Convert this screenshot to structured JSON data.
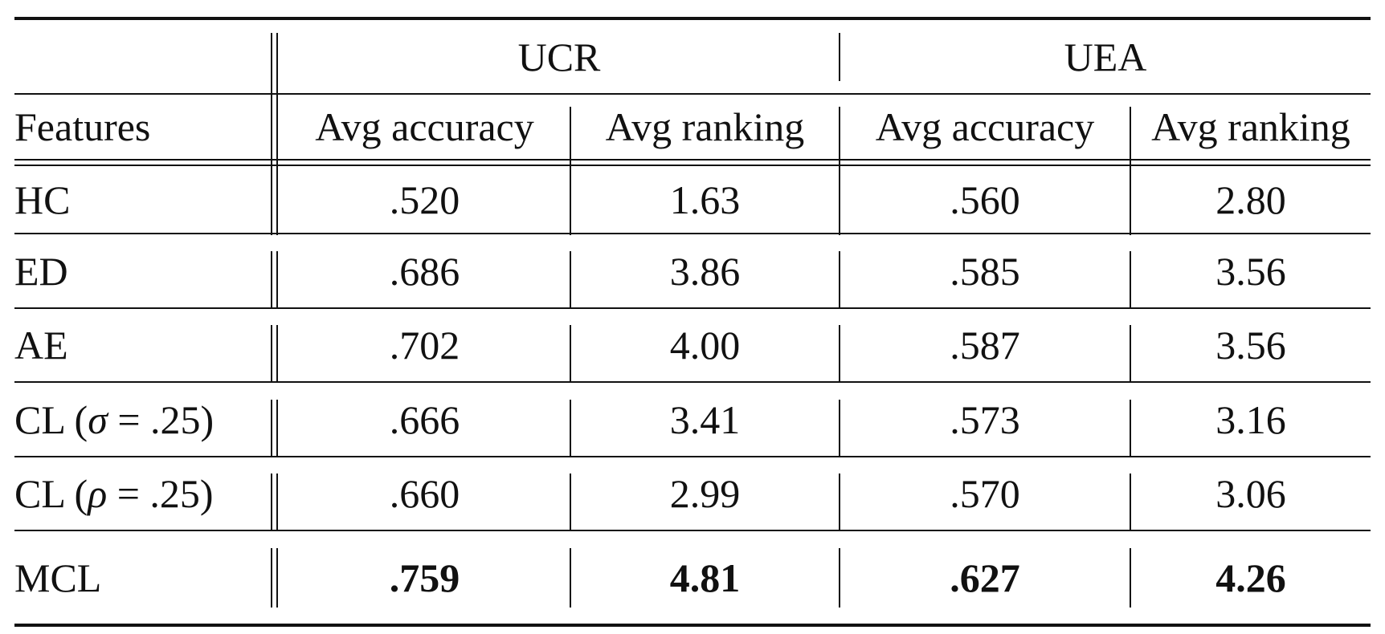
{
  "table": {
    "groups": [
      {
        "label": "UCR"
      },
      {
        "label": "UEA"
      }
    ],
    "header": {
      "features": "Features",
      "columns": [
        "Avg accuracy",
        "Avg ranking",
        "Avg accuracy",
        "Avg ranking"
      ]
    },
    "rows": [
      {
        "feature": "HC",
        "values": [
          ".520",
          "1.63",
          ".560",
          "2.80"
        ],
        "bold": false
      },
      {
        "feature": "ED",
        "values": [
          ".686",
          "3.86",
          ".585",
          "3.56"
        ],
        "bold": false
      },
      {
        "feature": "AE",
        "values": [
          ".702",
          "4.00",
          ".587",
          "3.56"
        ],
        "bold": false
      },
      {
        "feature_prefix": "CL (",
        "feature_symbol": "σ",
        "feature_suffix": " = .25)",
        "values": [
          ".666",
          "3.41",
          ".573",
          "3.16"
        ],
        "bold": false
      },
      {
        "feature_prefix": "CL (",
        "feature_symbol": "ρ",
        "feature_suffix": " = .25)",
        "values": [
          ".660",
          "2.99",
          ".570",
          "3.06"
        ],
        "bold": false
      },
      {
        "feature": "MCL",
        "values": [
          ".759",
          "4.81",
          ".627",
          "4.26"
        ],
        "bold": true
      }
    ]
  }
}
